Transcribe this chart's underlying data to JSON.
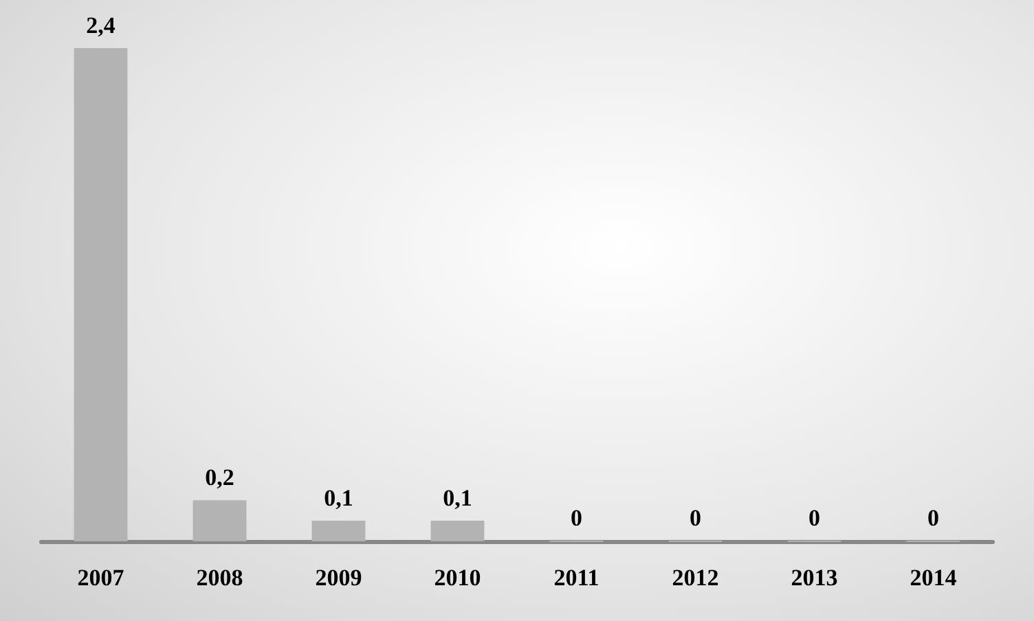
{
  "chart_data": {
    "type": "bar",
    "categories": [
      "2007",
      "2008",
      "2009",
      "2010",
      "2011",
      "2012",
      "2013",
      "2014"
    ],
    "values": [
      2.4,
      0.2,
      0.1,
      0.1,
      0,
      0,
      0,
      0
    ],
    "value_labels": [
      "2,4",
      "0,2",
      "0,1",
      "0,1",
      "0",
      "0",
      "0",
      "0"
    ],
    "color": "#b3b3b3",
    "grid": false
  }
}
